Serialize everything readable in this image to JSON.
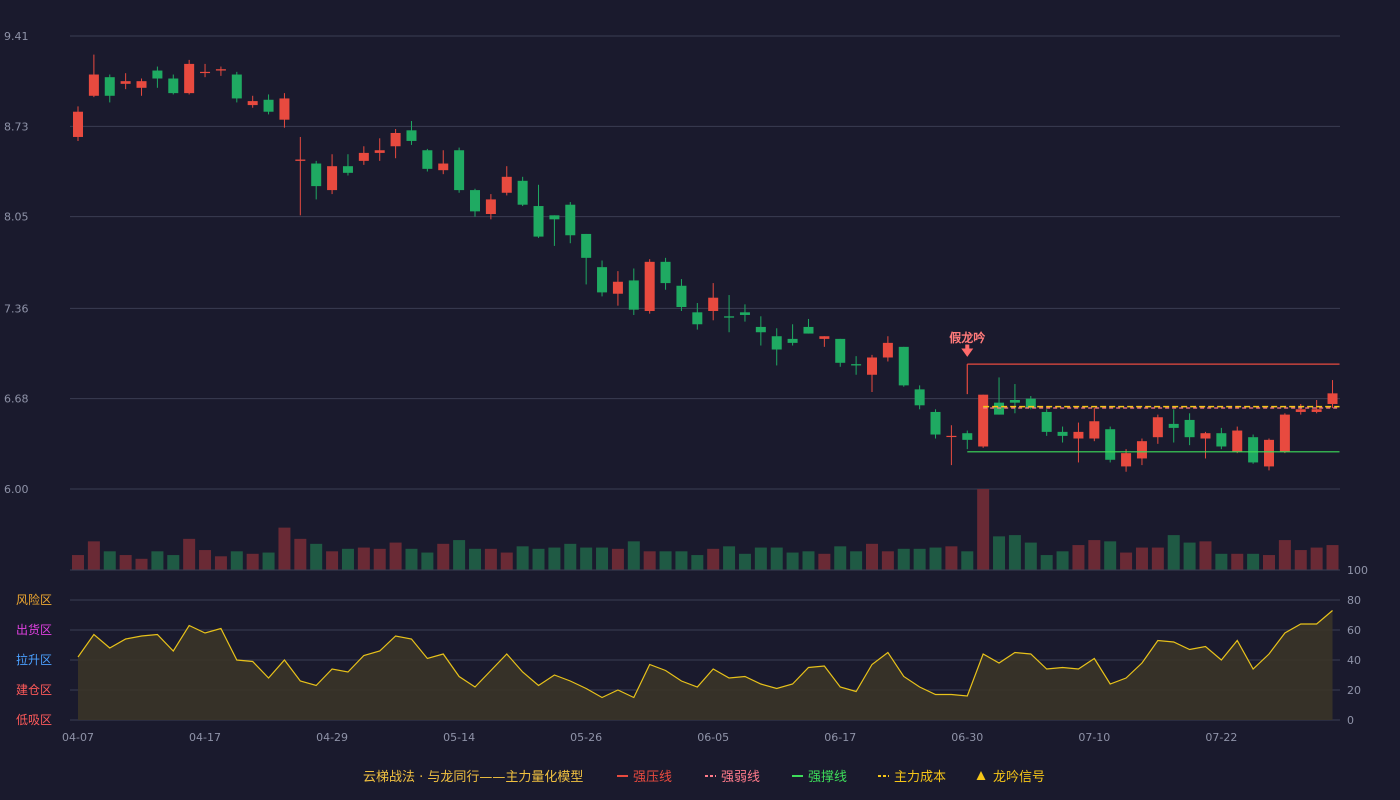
{
  "colors": {
    "background": "#1a1a2d",
    "up": "#e84a3f",
    "down": "#1faa62",
    "volume_up": "#6a2a35",
    "volume_down": "#1f5a44",
    "grid": "#3a3d52",
    "pressure_line": "#e84a3f",
    "support_line": "#3ddc5a",
    "cost_line": "#f5c518",
    "weak_line": "#ff7a8a",
    "indicator_line": "#e8c21a",
    "indicator_fill": "#3a3428"
  },
  "legend": {
    "model": "云梯战法 · 与龙同行——主力量化模型",
    "pressure": "强压线",
    "weak": "强弱线",
    "support": "强撑线",
    "cost": "主力成本",
    "signal": "龙吟信号"
  },
  "indicator_zones": [
    {
      "label": "风险区",
      "color": "#f0a830",
      "value": 80
    },
    {
      "label": "出货区",
      "color": "#e040e0",
      "value": 60
    },
    {
      "label": "拉升区",
      "color": "#4aa0ff",
      "value": 40
    },
    {
      "label": "建仓区",
      "color": "#ff5a5a",
      "value": 20
    },
    {
      "label": "低吸区",
      "color": "#ff5a5a",
      "value": 0
    }
  ],
  "indicator_axis": {
    "top_label": "100",
    "top_color": "#3ddc5a",
    "ticks": [
      {
        "label": "80",
        "color": "#f0a830",
        "value": 80
      },
      {
        "label": "60",
        "color": "#e040e0",
        "value": 60
      },
      {
        "label": "40",
        "color": "#4aa0ff",
        "value": 40
      },
      {
        "label": "20",
        "color": "#ff5a5a",
        "value": 20
      },
      {
        "label": "0",
        "color": "#ff5a5a",
        "value": 0
      }
    ]
  },
  "chart_data": {
    "type": "candlestick",
    "title": "",
    "price_ticks": [
      "9.41",
      "8.73",
      "8.05",
      "7.36",
      "6.68",
      "6.00"
    ],
    "price_range": [
      6.0,
      9.41
    ],
    "x_ticks": [
      {
        "label": "04-07",
        "index": 0
      },
      {
        "label": "04-17",
        "index": 8
      },
      {
        "label": "04-29",
        "index": 16
      },
      {
        "label": "05-14",
        "index": 24
      },
      {
        "label": "05-26",
        "index": 32
      },
      {
        "label": "06-05",
        "index": 40
      },
      {
        "label": "06-17",
        "index": 48
      },
      {
        "label": "06-30",
        "index": 56
      },
      {
        "label": "07-10",
        "index": 64
      },
      {
        "label": "07-22",
        "index": 72
      }
    ],
    "ohlc": [
      [
        8.65,
        8.84,
        8.62,
        8.88
      ],
      [
        8.96,
        9.12,
        8.95,
        9.27
      ],
      [
        9.1,
        8.96,
        8.91,
        9.12
      ],
      [
        9.05,
        9.07,
        9.01,
        9.13
      ],
      [
        9.02,
        9.07,
        8.96,
        9.09
      ],
      [
        9.15,
        9.09,
        9.02,
        9.18
      ],
      [
        9.09,
        8.98,
        8.97,
        9.12
      ],
      [
        8.98,
        9.2,
        8.97,
        9.23
      ],
      [
        9.14,
        9.14,
        9.1,
        9.2
      ],
      [
        9.15,
        9.16,
        9.11,
        9.18
      ],
      [
        9.12,
        8.94,
        8.91,
        9.14
      ],
      [
        8.89,
        8.92,
        8.87,
        8.96
      ],
      [
        8.93,
        8.84,
        8.82,
        8.97
      ],
      [
        8.78,
        8.94,
        8.72,
        8.98
      ],
      [
        8.47,
        8.48,
        8.06,
        8.65
      ],
      [
        8.45,
        8.28,
        8.18,
        8.47
      ],
      [
        8.25,
        8.43,
        8.22,
        8.52
      ],
      [
        8.43,
        8.38,
        8.36,
        8.52
      ],
      [
        8.47,
        8.53,
        8.44,
        8.58
      ],
      [
        8.53,
        8.55,
        8.47,
        8.64
      ],
      [
        8.58,
        8.68,
        8.49,
        8.71
      ],
      [
        8.7,
        8.62,
        8.59,
        8.77
      ],
      [
        8.55,
        8.41,
        8.39,
        8.56
      ],
      [
        8.4,
        8.45,
        8.37,
        8.55
      ],
      [
        8.55,
        8.25,
        8.23,
        8.57
      ],
      [
        8.25,
        8.09,
        8.05,
        8.26
      ],
      [
        8.07,
        8.18,
        8.03,
        8.22
      ],
      [
        8.23,
        8.35,
        8.21,
        8.43
      ],
      [
        8.32,
        8.14,
        8.13,
        8.35
      ],
      [
        8.13,
        7.9,
        7.89,
        8.29
      ],
      [
        8.06,
        8.03,
        7.83,
        8.06
      ],
      [
        8.14,
        7.91,
        7.85,
        8.16
      ],
      [
        7.92,
        7.74,
        7.54,
        7.92
      ],
      [
        7.67,
        7.48,
        7.45,
        7.72
      ],
      [
        7.47,
        7.56,
        7.38,
        7.64
      ],
      [
        7.57,
        7.35,
        7.31,
        7.66
      ],
      [
        7.34,
        7.71,
        7.32,
        7.73
      ],
      [
        7.71,
        7.55,
        7.5,
        7.74
      ],
      [
        7.53,
        7.37,
        7.34,
        7.58
      ],
      [
        7.33,
        7.24,
        7.2,
        7.4
      ],
      [
        7.34,
        7.44,
        7.27,
        7.55
      ],
      [
        7.3,
        7.29,
        7.18,
        7.46
      ],
      [
        7.33,
        7.31,
        7.26,
        7.39
      ],
      [
        7.22,
        7.18,
        7.08,
        7.3
      ],
      [
        7.15,
        7.05,
        6.93,
        7.21
      ],
      [
        7.13,
        7.1,
        7.08,
        7.24
      ],
      [
        7.22,
        7.17,
        7.17,
        7.28
      ],
      [
        7.13,
        7.15,
        7.07,
        7.15
      ],
      [
        7.13,
        6.95,
        6.92,
        7.13
      ],
      [
        6.94,
        6.93,
        6.86,
        7.0
      ],
      [
        6.86,
        6.99,
        6.73,
        7.01
      ],
      [
        6.99,
        7.1,
        6.96,
        7.15
      ],
      [
        7.07,
        6.78,
        6.77,
        7.07
      ],
      [
        6.75,
        6.63,
        6.6,
        6.78
      ],
      [
        6.58,
        6.41,
        6.38,
        6.6
      ],
      [
        6.4,
        6.4,
        6.18,
        6.48
      ],
      [
        6.42,
        6.37,
        6.3,
        6.44
      ],
      [
        6.32,
        6.71,
        6.31,
        6.71
      ],
      [
        6.65,
        6.56,
        6.56,
        6.84
      ],
      [
        6.67,
        6.65,
        6.57,
        6.79
      ],
      [
        6.68,
        6.61,
        6.6,
        6.7
      ],
      [
        6.58,
        6.43,
        6.4,
        6.6
      ],
      [
        6.43,
        6.4,
        6.35,
        6.47
      ],
      [
        6.38,
        6.43,
        6.2,
        6.5
      ],
      [
        6.38,
        6.51,
        6.36,
        6.61
      ],
      [
        6.45,
        6.22,
        6.2,
        6.47
      ],
      [
        6.17,
        6.27,
        6.13,
        6.3
      ],
      [
        6.23,
        6.36,
        6.18,
        6.38
      ],
      [
        6.39,
        6.54,
        6.34,
        6.56
      ],
      [
        6.49,
        6.46,
        6.35,
        6.6
      ],
      [
        6.52,
        6.39,
        6.33,
        6.57
      ],
      [
        6.38,
        6.42,
        6.23,
        6.43
      ],
      [
        6.42,
        6.32,
        6.3,
        6.46
      ],
      [
        6.28,
        6.44,
        6.27,
        6.47
      ],
      [
        6.39,
        6.2,
        6.19,
        6.41
      ],
      [
        6.17,
        6.37,
        6.14,
        6.38
      ],
      [
        6.28,
        6.56,
        6.27,
        6.57
      ],
      [
        6.58,
        6.6,
        6.56,
        6.64
      ],
      [
        6.58,
        6.6,
        6.57,
        6.67
      ],
      [
        6.64,
        6.72,
        6.61,
        6.82
      ]
    ],
    "volume": [
      12,
      23,
      15,
      12,
      9,
      15,
      12,
      25,
      16,
      11,
      15,
      13,
      14,
      34,
      25,
      21,
      15,
      17,
      18,
      17,
      22,
      17,
      14,
      21,
      24,
      17,
      17,
      14,
      19,
      17,
      18,
      21,
      18,
      18,
      17,
      23,
      15,
      15,
      15,
      12,
      17,
      19,
      13,
      18,
      18,
      14,
      15,
      13,
      19,
      15,
      21,
      15,
      17,
      17,
      18,
      19,
      15,
      65,
      27,
      28,
      22,
      12,
      15,
      20,
      24,
      23,
      14,
      18,
      18,
      28,
      22,
      23,
      13,
      13,
      13,
      12,
      24,
      16,
      18,
      20
    ],
    "indicator": [
      42,
      57,
      48,
      54,
      56,
      57,
      46,
      63,
      58,
      61,
      40,
      39,
      28,
      40,
      26,
      23,
      34,
      32,
      43,
      46,
      56,
      54,
      41,
      44,
      29,
      22,
      33,
      44,
      32,
      23,
      30,
      26,
      21,
      15,
      20,
      15,
      37,
      33,
      26,
      22,
      34,
      28,
      29,
      24,
      21,
      24,
      35,
      36,
      22,
      19,
      37,
      45,
      29,
      22,
      17,
      17,
      16,
      44,
      38,
      45,
      44,
      34,
      35,
      34,
      41,
      24,
      28,
      38,
      53,
      52,
      47,
      49,
      40,
      53,
      34,
      44,
      58,
      64,
      64,
      73
    ],
    "resistance_line": {
      "value": 6.94,
      "from": 56,
      "to": 79,
      "label": "强压线"
    },
    "support_line": {
      "value": 6.28,
      "from": 56,
      "to": 79,
      "label": "强撑线"
    },
    "cost_line": {
      "value": 6.62,
      "from": 57,
      "to": 79,
      "label": "主力成本"
    },
    "weak_line": {
      "value": 6.61,
      "from": 57,
      "to": 79,
      "label": "强弱线"
    },
    "signal": {
      "label": "假龙吟",
      "index": 56
    }
  }
}
